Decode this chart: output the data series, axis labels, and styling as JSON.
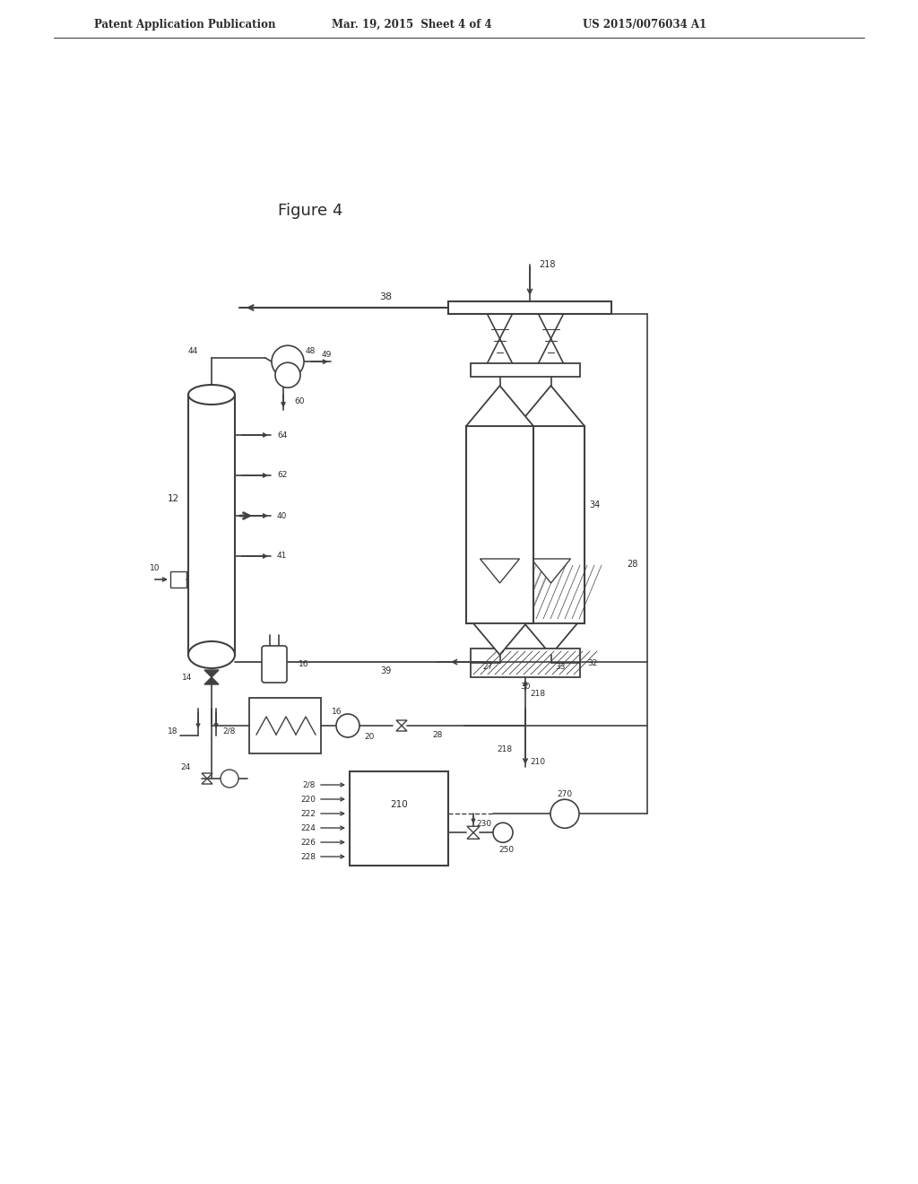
{
  "bg_color": "#ffffff",
  "title_header": "Patent Application Publication",
  "title_date": "Mar. 19, 2015  Sheet 4 of 4",
  "title_patent": "US 2015/0076034 A1",
  "figure_label": "Figure 4",
  "text_color": "#2a2a2a",
  "line_color": "#404040"
}
